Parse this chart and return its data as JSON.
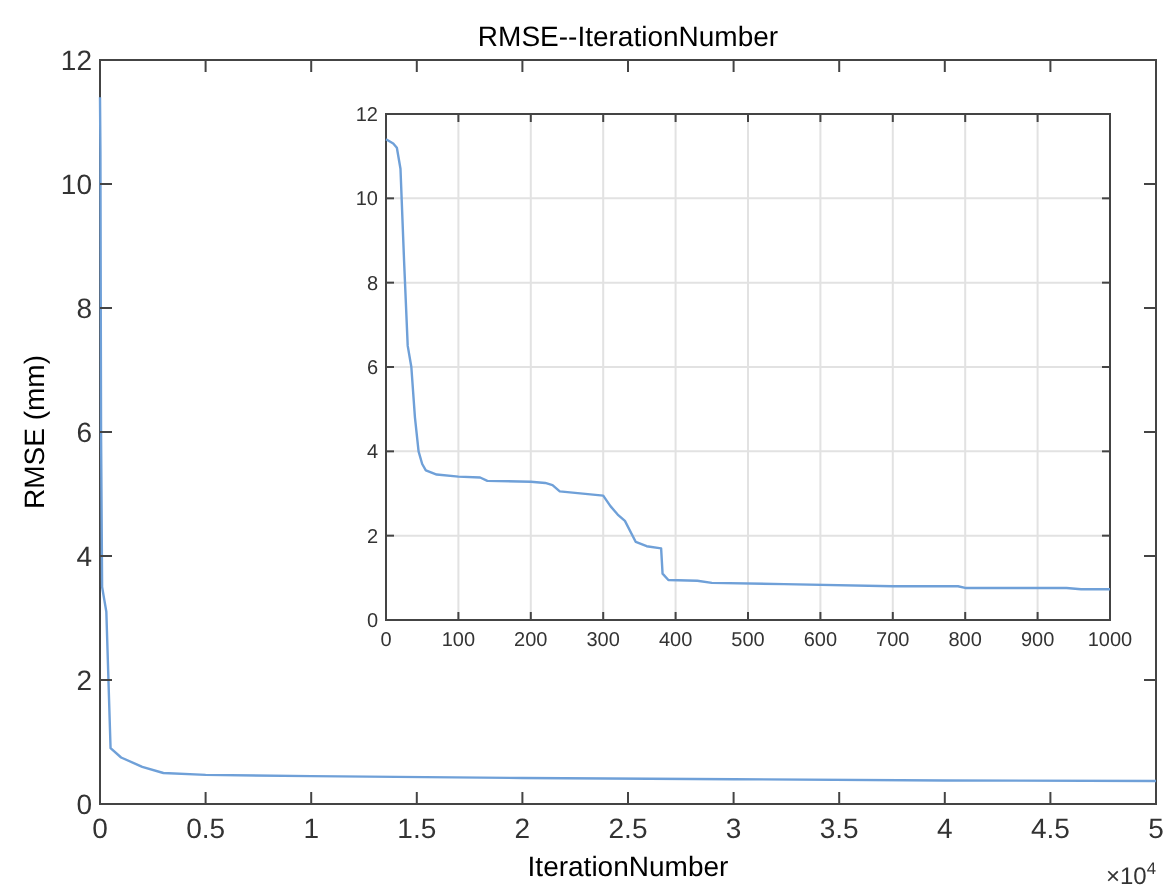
{
  "chart_data": [
    {
      "type": "line",
      "title": "RMSE--IterationNumber",
      "xlabel": "IterationNumber",
      "ylabel": "RMSE (mm)",
      "annotations": [
        "×10$^{4}$"
      ],
      "xlim": [
        0,
        5
      ],
      "xticks": [
        0,
        0.5,
        1,
        1.5,
        2,
        2.5,
        3,
        3.5,
        4,
        4.5,
        5
      ],
      "ylim": [
        0,
        12
      ],
      "yticks": [
        0,
        2,
        4,
        6,
        8,
        10,
        12
      ],
      "grid": false,
      "series": [
        {
          "color": "#6fa0d8",
          "x": [
            0,
            0.002,
            0.005,
            0.01,
            0.02,
            0.03,
            0.04,
            0.05,
            0.1,
            0.2,
            0.3,
            0.5,
            1,
            2,
            3,
            4,
            5
          ],
          "values": [
            11.4,
            10.5,
            6,
            3.5,
            3.3,
            3.1,
            2.0,
            0.9,
            0.75,
            0.6,
            0.5,
            0.47,
            0.45,
            0.42,
            0.4,
            0.38,
            0.37
          ]
        }
      ]
    },
    {
      "type": "line",
      "xlim": [
        0,
        1000
      ],
      "xticks": [
        0,
        100,
        200,
        300,
        400,
        500,
        600,
        700,
        800,
        900,
        1000
      ],
      "ylim": [
        0,
        12
      ],
      "yticks": [
        0,
        2,
        4,
        6,
        8,
        10,
        12
      ],
      "grid": true,
      "series": [
        {
          "color": "#6fa0d8",
          "x": [
            0,
            10,
            15,
            20,
            25,
            30,
            35,
            40,
            45,
            50,
            55,
            70,
            100,
            130,
            140,
            200,
            220,
            230,
            240,
            300,
            310,
            320,
            330,
            345,
            360,
            380,
            382,
            390,
            430,
            450,
            550,
            700,
            790,
            800,
            940,
            960,
            1000
          ],
          "values": [
            11.4,
            11.3,
            11.2,
            10.7,
            8.5,
            6.5,
            6,
            4.8,
            4,
            3.7,
            3.55,
            3.45,
            3.4,
            3.38,
            3.3,
            3.28,
            3.25,
            3.2,
            3.05,
            2.95,
            2.7,
            2.5,
            2.35,
            1.85,
            1.75,
            1.7,
            1.1,
            0.95,
            0.93,
            0.88,
            0.85,
            0.8,
            0.8,
            0.76,
            0.76,
            0.73,
            0.73
          ]
        }
      ]
    }
  ]
}
